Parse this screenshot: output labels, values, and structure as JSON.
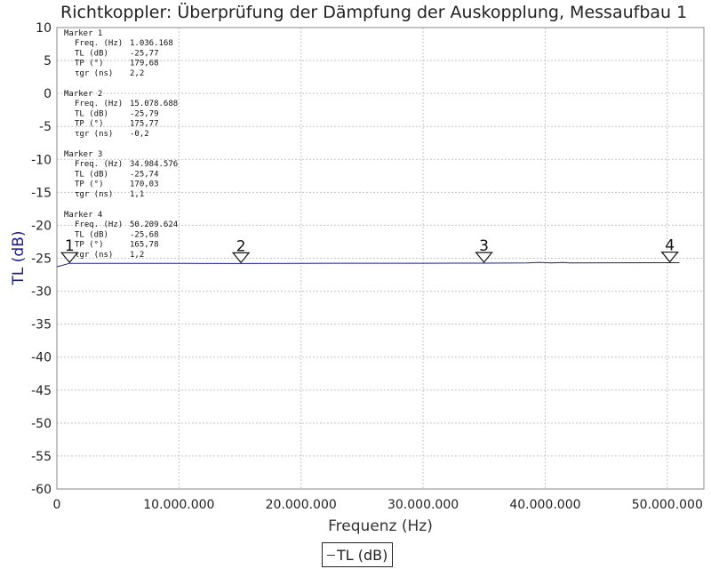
{
  "chart_data": {
    "type": "line",
    "title": "Richtkoppler: Überprüfung der Dämpfung der Auskopplung, Messaufbau 1",
    "xlabel": "Frequenz (Hz)",
    "ylabel": "TL (dB)",
    "xlim": [
      0,
      53000000
    ],
    "ylim": [
      -60,
      10
    ],
    "x_ticks": [
      0,
      10000000,
      20000000,
      30000000,
      40000000,
      50000000
    ],
    "x_tick_labels": [
      "0",
      "10.000.000",
      "20.000.000",
      "30.000.000",
      "40.000.000",
      "50.000.000"
    ],
    "y_ticks": [
      10,
      5,
      0,
      -5,
      -10,
      -15,
      -20,
      -25,
      -30,
      -35,
      -40,
      -45,
      -50,
      -55,
      -60
    ],
    "grid": true,
    "legend_position": "bottom-center",
    "series": [
      {
        "name": "TL (dB)",
        "color": "#1c1c8c",
        "x": [
          0,
          1036168,
          5000000,
          10000000,
          15078688,
          20000000,
          25000000,
          30000000,
          34984576,
          38500000,
          39500000,
          40500000,
          41500000,
          42000000,
          45000000,
          50209624,
          51000000
        ],
        "y": [
          -26.3,
          -25.77,
          -25.78,
          -25.78,
          -25.79,
          -25.77,
          -25.76,
          -25.75,
          -25.74,
          -25.7,
          -25.62,
          -25.7,
          -25.63,
          -25.7,
          -25.69,
          -25.68,
          -25.68
        ]
      }
    ],
    "markers": [
      {
        "number": "1",
        "x": 1036168,
        "title": "Marker 1",
        "rows": [
          {
            "label": "Freq. (Hz)",
            "value": "1.036.168"
          },
          {
            "label": "TL (dB)",
            "value": "-25,77"
          },
          {
            "label": "TP (°)",
            "value": "179,68"
          },
          {
            "label": "τgr (ns)",
            "value": "2,2"
          }
        ]
      },
      {
        "number": "2",
        "x": 15078688,
        "title": "Marker 2",
        "rows": [
          {
            "label": "Freq. (Hz)",
            "value": "15.078.688"
          },
          {
            "label": "TL (dB)",
            "value": "-25,79"
          },
          {
            "label": "TP (°)",
            "value": "175,77"
          },
          {
            "label": "τgr (ns)",
            "value": "-0,2"
          }
        ]
      },
      {
        "number": "3",
        "x": 34984576,
        "title": "Marker 3",
        "rows": [
          {
            "label": "Freq. (Hz)",
            "value": "34.984.576"
          },
          {
            "label": "TL (dB)",
            "value": "-25,74"
          },
          {
            "label": "TP (°)",
            "value": "170,03"
          },
          {
            "label": "τgr (ns)",
            "value": "1,1"
          }
        ]
      },
      {
        "number": "4",
        "x": 50209624,
        "title": "Marker 4",
        "rows": [
          {
            "label": "Freq. (Hz)",
            "value": "50.209.624"
          },
          {
            "label": "TL (dB)",
            "value": "-25,68"
          },
          {
            "label": "TP (°)",
            "value": "165,78"
          },
          {
            "label": "τgr (ns)",
            "value": "1,2"
          }
        ]
      }
    ],
    "legend": [
      {
        "label": "TL (dB)"
      }
    ]
  }
}
